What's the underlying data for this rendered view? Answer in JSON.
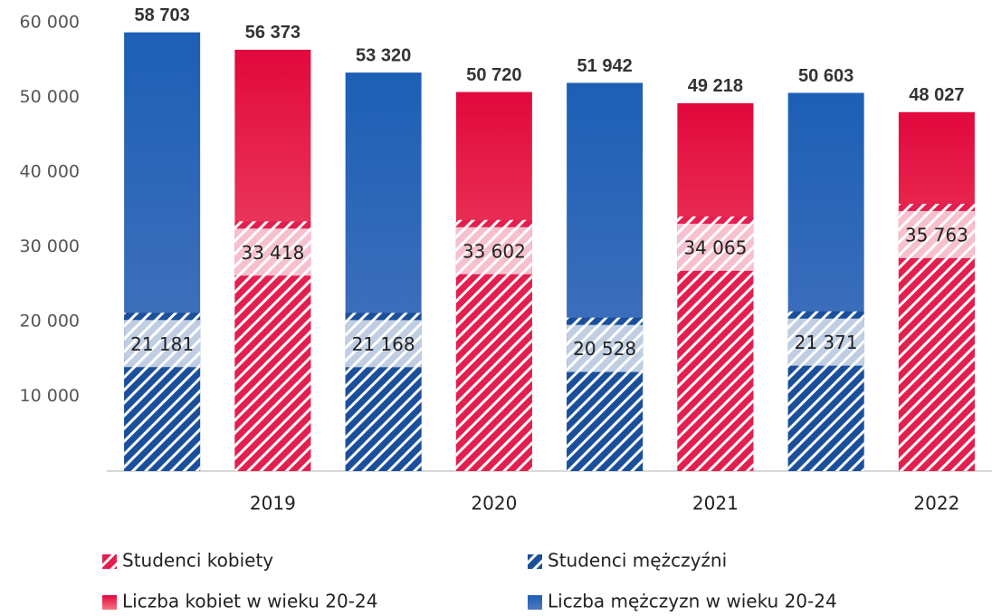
{
  "chart_data": {
    "type": "bar",
    "categories": [
      null,
      "2019",
      null,
      "2020",
      null,
      "2021",
      null,
      "2022"
    ],
    "series": [
      {
        "name": "Liczba mężczyzn w wieku 20-24",
        "color": "#1c5fb5",
        "color2": "#5077be",
        "values": [
          58703,
          null,
          53320,
          null,
          51942,
          null,
          50603,
          null
        ],
        "value_labels": [
          "58 703",
          null,
          "53 320",
          null,
          "51 942",
          null,
          "50 603",
          null
        ]
      },
      {
        "name": "Liczba kobiet w wieku 20-24",
        "color": "#e2083c",
        "color2": "#f47482",
        "values": [
          null,
          56373,
          null,
          50720,
          null,
          49218,
          null,
          48027
        ],
        "value_labels": [
          null,
          "56 373",
          null,
          "50 720",
          null,
          "49 218",
          null,
          "48 027"
        ]
      },
      {
        "name": "Studenci mężczyźni",
        "color": "#1b4f9c",
        "hatch": true,
        "values": [
          21181,
          null,
          21168,
          null,
          20528,
          null,
          21371,
          null
        ],
        "value_labels": [
          "21 181",
          null,
          "21 168",
          null,
          "20 528",
          null,
          "21 371",
          null
        ]
      },
      {
        "name": "Studenci kobiety",
        "color": "#e31f4f",
        "hatch": true,
        "values": [
          null,
          33418,
          null,
          33602,
          null,
          34065,
          null,
          35763
        ],
        "value_labels": [
          null,
          "33 418",
          null,
          "33 602",
          null,
          "34 065",
          null,
          "35 763"
        ]
      }
    ],
    "legend_order": [
      3,
      2,
      1,
      0
    ],
    "ylim": [
      0,
      60000
    ],
    "yticks": [
      {
        "value": 10000,
        "label": "10 000"
      },
      {
        "value": 20000,
        "label": "20 000"
      },
      {
        "value": 30000,
        "label": "30 000"
      },
      {
        "value": 40000,
        "label": "40 000"
      },
      {
        "value": 50000,
        "label": "50 000"
      },
      {
        "value": 60000,
        "label": "60 000"
      }
    ],
    "grid": false
  }
}
